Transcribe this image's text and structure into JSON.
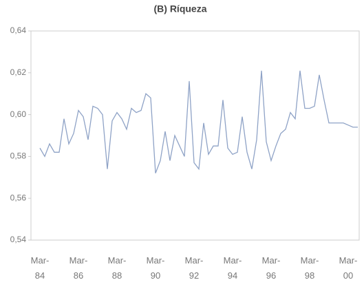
{
  "chart_data": {
    "type": "line",
    "title": "(B) Ríqueza",
    "categories": [
      "Mar-84",
      null,
      null,
      null,
      null,
      null,
      null,
      null,
      "Mar-86",
      null,
      null,
      null,
      null,
      null,
      null,
      null,
      "Mar-88",
      null,
      null,
      null,
      null,
      null,
      null,
      null,
      "Mar-90",
      null,
      null,
      null,
      null,
      null,
      null,
      null,
      "Mar-92",
      null,
      null,
      null,
      null,
      null,
      null,
      null,
      "Mar-94",
      null,
      null,
      null,
      null,
      null,
      null,
      null,
      "Mar-96",
      null,
      null,
      null,
      null,
      null,
      null,
      null,
      "Mar-98",
      null,
      null,
      null,
      null,
      null,
      null,
      null,
      "Mar-00",
      null,
      null
    ],
    "values": [
      0.584,
      0.58,
      0.586,
      0.582,
      0.582,
      0.598,
      0.586,
      0.591,
      0.602,
      0.599,
      0.588,
      0.604,
      0.603,
      0.6,
      0.574,
      0.597,
      0.601,
      0.598,
      0.593,
      0.603,
      0.601,
      0.602,
      0.61,
      0.608,
      0.572,
      0.578,
      0.592,
      0.578,
      0.59,
      0.585,
      0.58,
      0.616,
      0.577,
      0.574,
      0.596,
      0.581,
      0.585,
      0.585,
      0.607,
      0.584,
      0.581,
      0.582,
      0.599,
      0.582,
      0.574,
      0.588,
      0.621,
      0.587,
      0.578,
      0.585,
      0.591,
      0.593,
      0.601,
      0.598,
      0.621,
      0.603,
      0.603,
      0.604,
      0.619,
      0.607,
      0.596,
      0.596,
      0.596,
      0.596,
      0.595,
      0.594,
      0.594
    ],
    "color": "#8ea2c6",
    "ylim": [
      0.54,
      0.64
    ],
    "yticks": [
      {
        "value": 0.54,
        "label": "0,54"
      },
      {
        "value": 0.56,
        "label": "0,56"
      },
      {
        "value": 0.58,
        "label": "0,58"
      },
      {
        "value": 0.6,
        "label": "0,60"
      },
      {
        "value": 0.62,
        "label": "0,62"
      },
      {
        "value": 0.64,
        "label": "0,64"
      }
    ]
  }
}
